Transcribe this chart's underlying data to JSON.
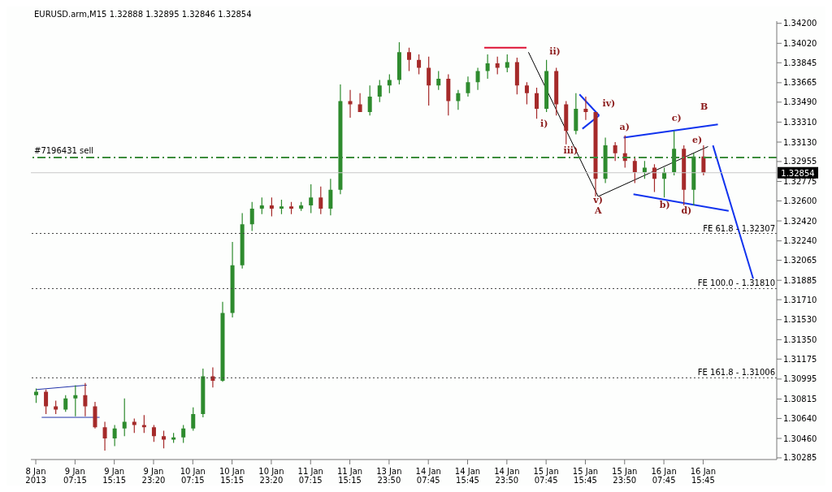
{
  "chart_data": {
    "type": "candlestick",
    "title": "EURUSD.arm,M15  1.32888 1.32895 1.32846 1.32854",
    "categories": [
      "8 Jan 2013",
      null,
      null,
      null,
      "9 Jan 07:15",
      null,
      null,
      null,
      "9 Jan 15:15",
      null,
      null,
      null,
      "9 Jan 23:20",
      null,
      null,
      null,
      "10 Jan 07:15",
      null,
      null,
      null,
      "10 Jan 15:15",
      null,
      null,
      null,
      "10 Jan 23:20",
      null,
      null,
      null,
      "11 Jan 07:15",
      null,
      null,
      null,
      "11 Jan 15:15",
      null,
      null,
      null,
      "13 Jan 23:50",
      null,
      null,
      null,
      "14 Jan 07:45",
      null,
      null,
      null,
      "14 Jan 15:45",
      null,
      null,
      null,
      "14 Jan 23:50",
      null,
      null,
      null,
      "15 Jan 07:45",
      null,
      null,
      null,
      "15 Jan 15:45",
      null,
      null,
      null,
      "15 Jan 23:50",
      null,
      null,
      null,
      "16 Jan 07:45",
      null,
      null,
      null,
      "16 Jan 15:45",
      null,
      null,
      null,
      null,
      null,
      null,
      null
    ],
    "ohlc": [
      [
        1.3085,
        1.3091,
        1.3078,
        1.3088
      ],
      [
        1.3088,
        1.309,
        1.3068,
        1.3075
      ],
      [
        1.3075,
        1.308,
        1.3068,
        1.3072
      ],
      [
        1.3072,
        1.3085,
        1.307,
        1.3082
      ],
      [
        1.3082,
        1.3094,
        1.3066,
        1.3085
      ],
      [
        1.3085,
        1.3096,
        1.3066,
        1.3075
      ],
      [
        1.3075,
        1.3079,
        1.3055,
        1.3056
      ],
      [
        1.3056,
        1.3061,
        1.3035,
        1.3046
      ],
      [
        1.3046,
        1.3058,
        1.3039,
        1.3055
      ],
      [
        1.3055,
        1.3082,
        1.3048,
        1.3061
      ],
      [
        1.3061,
        1.3064,
        1.3051,
        1.3058
      ],
      [
        1.3058,
        1.3067,
        1.3051,
        1.3056
      ],
      [
        1.3056,
        1.3058,
        1.3043,
        1.3048
      ],
      [
        1.3048,
        1.3053,
        1.3037,
        1.3045
      ],
      [
        1.3045,
        1.3051,
        1.3042,
        1.3047
      ],
      [
        1.3047,
        1.3058,
        1.3042,
        1.3055
      ],
      [
        1.3055,
        1.3074,
        1.3053,
        1.3068
      ],
      [
        1.3068,
        1.3109,
        1.3065,
        1.3102
      ],
      [
        1.3102,
        1.311,
        1.3092,
        1.3098
      ],
      [
        1.3098,
        1.3169,
        1.3097,
        1.3159
      ],
      [
        1.3159,
        1.3223,
        1.3155,
        1.3202
      ],
      [
        1.3202,
        1.3249,
        1.3199,
        1.3239
      ],
      [
        1.3239,
        1.3259,
        1.3233,
        1.3253
      ],
      [
        1.3253,
        1.3263,
        1.3248,
        1.3256
      ],
      [
        1.3256,
        1.3263,
        1.3246,
        1.3253
      ],
      [
        1.3253,
        1.3261,
        1.3248,
        1.3255
      ],
      [
        1.3255,
        1.3259,
        1.3248,
        1.3253
      ],
      [
        1.3253,
        1.3259,
        1.3251,
        1.3256
      ],
      [
        1.3256,
        1.3275,
        1.3249,
        1.3263
      ],
      [
        1.3263,
        1.3273,
        1.3248,
        1.3253
      ],
      [
        1.3253,
        1.328,
        1.3247,
        1.327
      ],
      [
        1.327,
        1.3365,
        1.3266,
        1.335
      ],
      [
        1.335,
        1.336,
        1.3335,
        1.3347
      ],
      [
        1.3347,
        1.3357,
        1.334,
        1.334
      ],
      [
        1.334,
        1.3364,
        1.3337,
        1.3354
      ],
      [
        1.3354,
        1.3369,
        1.3349,
        1.3364
      ],
      [
        1.3364,
        1.3374,
        1.3357,
        1.3369
      ],
      [
        1.3369,
        1.3403,
        1.3365,
        1.3394
      ],
      [
        1.3394,
        1.3398,
        1.3377,
        1.3387
      ],
      [
        1.3387,
        1.3392,
        1.3374,
        1.338
      ],
      [
        1.338,
        1.339,
        1.3346,
        1.3364
      ],
      [
        1.3364,
        1.3377,
        1.336,
        1.337
      ],
      [
        1.337,
        1.3374,
        1.3337,
        1.335
      ],
      [
        1.335,
        1.336,
        1.3342,
        1.3357
      ],
      [
        1.3357,
        1.3372,
        1.3354,
        1.3367
      ],
      [
        1.3367,
        1.338,
        1.336,
        1.3377
      ],
      [
        1.3377,
        1.3392,
        1.337,
        1.3384
      ],
      [
        1.3384,
        1.339,
        1.3374,
        1.338
      ],
      [
        1.338,
        1.3392,
        1.3376,
        1.3385
      ],
      [
        1.3385,
        1.3389,
        1.3356,
        1.3364
      ],
      [
        1.3364,
        1.3367,
        1.3347,
        1.3357
      ],
      [
        1.3357,
        1.3362,
        1.3334,
        1.3343
      ],
      [
        1.3343,
        1.3387,
        1.334,
        1.3377
      ],
      [
        1.3377,
        1.338,
        1.3337,
        1.3347
      ],
      [
        1.3347,
        1.335,
        1.3311,
        1.3323
      ],
      [
        1.3323,
        1.3357,
        1.332,
        1.3343
      ],
      [
        1.3343,
        1.3354,
        1.3333,
        1.334
      ],
      [
        1.334,
        1.334,
        1.3264,
        1.328
      ],
      [
        1.328,
        1.3317,
        1.3276,
        1.331
      ],
      [
        1.331,
        1.3313,
        1.3296,
        1.3303
      ],
      [
        1.3303,
        1.3319,
        1.329,
        1.3296
      ],
      [
        1.3296,
        1.33,
        1.3276,
        1.3286
      ],
      [
        1.3286,
        1.3296,
        1.328,
        1.329
      ],
      [
        1.329,
        1.3293,
        1.3268,
        1.328
      ],
      [
        1.328,
        1.329,
        1.3263,
        1.3286
      ],
      [
        1.3286,
        1.3323,
        1.3283,
        1.3307
      ],
      [
        1.3307,
        1.331,
        1.3256,
        1.327
      ],
      [
        1.327,
        1.3303,
        1.3256,
        1.33
      ],
      [
        1.33,
        1.331,
        1.3283,
        1.32854
      ],
      null,
      null,
      null,
      null,
      null,
      null,
      null
    ],
    "ylim": [
      1.3027,
      1.3422
    ],
    "yticks": [
      {
        "value": 1.342,
        "label": "1.34200"
      },
      {
        "value": 1.3402,
        "label": "1.34020"
      },
      {
        "value": 1.33845,
        "label": "1.33845"
      },
      {
        "value": 1.33665,
        "label": "1.33665"
      },
      {
        "value": 1.3349,
        "label": "1.33490"
      },
      {
        "value": 1.3331,
        "label": "1.33310"
      },
      {
        "value": 1.3313,
        "label": "1.33130"
      },
      {
        "value": 1.32955,
        "label": "1.32955"
      },
      {
        "value": 1.32775,
        "label": "1.32775"
      },
      {
        "value": 1.326,
        "label": "1.32600"
      },
      {
        "value": 1.3242,
        "label": "1.32420"
      },
      {
        "value": 1.3224,
        "label": "1.32240"
      },
      {
        "value": 1.32065,
        "label": "1.32065"
      },
      {
        "value": 1.31885,
        "label": "1.31885"
      },
      {
        "value": 1.3171,
        "label": "1.31710"
      },
      {
        "value": 1.3153,
        "label": "1.31530"
      },
      {
        "value": 1.3135,
        "label": "1.31350"
      },
      {
        "value": 1.31175,
        "label": "1.31175"
      },
      {
        "value": 1.30995,
        "label": "1.30995"
      },
      {
        "value": 1.30815,
        "label": "1.30815"
      },
      {
        "value": 1.3064,
        "label": "1.30640"
      },
      {
        "value": 1.3046,
        "label": "1.30460"
      },
      {
        "value": 1.30285,
        "label": "1.30285"
      }
    ],
    "ref_lines": [
      {
        "axis": "y",
        "value": 1.32991,
        "label": "#7196431 sell",
        "color": "#3c8c3c",
        "line_style": "dashed"
      },
      {
        "axis": "y",
        "value": 1.32854,
        "label": "1.32854",
        "color": "#c8c8c8",
        "line_style": "solid"
      },
      {
        "axis": "y",
        "value": 1.32307,
        "label": "FE 61.8 - 1.32307",
        "color": "#444444",
        "line_style": "dotted"
      },
      {
        "axis": "y",
        "value": 1.3181,
        "label": "FE 100.0 - 1.31810",
        "color": "#444444",
        "line_style": "dotted"
      },
      {
        "axis": "y",
        "value": 1.31006,
        "label": "FE 161.8 - 1.31006",
        "color": "#444444",
        "line_style": "dotted"
      }
    ],
    "annotations": [
      "i)",
      "ii)",
      "iii)",
      "iv)",
      "v)",
      "A",
      "a)",
      "b)",
      "c)",
      "d)",
      "e)",
      "B"
    ],
    "grid": false
  }
}
